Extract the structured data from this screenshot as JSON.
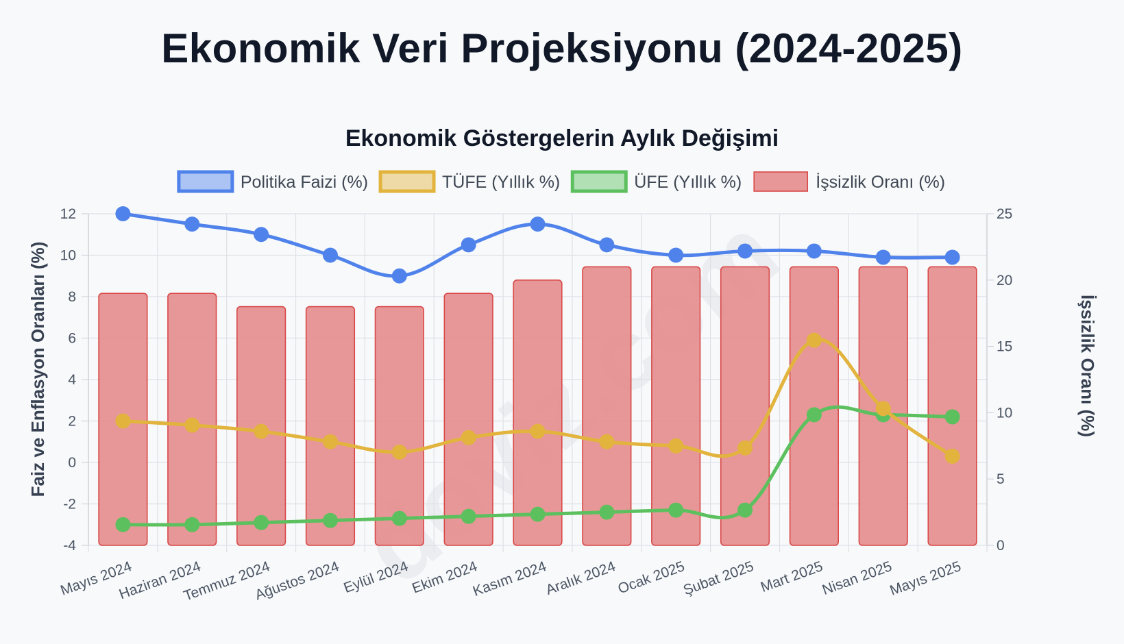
{
  "page": {
    "title": "Ekonomik Veri Projeksiyonu (2024-2025)"
  },
  "watermark": "doviz.com",
  "chart_data": {
    "type": "bar",
    "title": "Ekonomik Göstergelerin Aylık Değişimi",
    "categories": [
      "Mayıs 2024",
      "Haziran 2024",
      "Temmuz 2024",
      "Ağustos 2024",
      "Eylül 2024",
      "Ekim 2024",
      "Kasım 2024",
      "Aralık 2024",
      "Ocak 2025",
      "Şubat 2025",
      "Mart 2025",
      "Nisan 2025",
      "Mayıs 2025"
    ],
    "ylabel_left": "Faiz ve Enflasyon Oranları (%)",
    "ylabel_right": "İşsizlik Oranı (%)",
    "ylim_left": [
      -4,
      12
    ],
    "ylim_right": [
      0,
      25
    ],
    "yticks_left": [
      12,
      10,
      8,
      6,
      4,
      2,
      0,
      -2,
      -4
    ],
    "yticks_right": [
      25,
      20,
      15,
      10,
      5,
      0
    ],
    "grid": true,
    "legend_position": "top",
    "series": [
      {
        "name": "Politika Faizi (%)",
        "type": "line",
        "axis": "left",
        "color": "#4f82ea",
        "values": [
          12.0,
          11.5,
          11.0,
          10.0,
          9.0,
          10.5,
          11.5,
          10.5,
          10.0,
          10.2,
          10.2,
          9.9,
          9.9
        ]
      },
      {
        "name": "TÜFE (Yıllık %)",
        "type": "line",
        "axis": "left",
        "color": "#e2b43d",
        "values": [
          2.0,
          1.8,
          1.5,
          1.0,
          0.5,
          1.2,
          1.5,
          1.0,
          0.8,
          0.7,
          5.9,
          2.6,
          0.3
        ]
      },
      {
        "name": "ÜFE (Yıllık %)",
        "type": "line",
        "axis": "left",
        "color": "#5cc05f",
        "values": [
          -3.0,
          -3.0,
          -2.9,
          -2.8,
          -2.7,
          -2.6,
          -2.5,
          -2.4,
          -2.3,
          -2.3,
          2.3,
          2.3,
          2.2
        ]
      },
      {
        "name": "İşsizlik Oranı (%)",
        "type": "bar",
        "axis": "right",
        "color": "#e58e8e",
        "border": "#d94848",
        "values": [
          19.0,
          19.0,
          18.0,
          18.0,
          18.0,
          19.0,
          20.0,
          21.0,
          21.0,
          21.0,
          21.0,
          21.0,
          21.0
        ]
      }
    ]
  }
}
